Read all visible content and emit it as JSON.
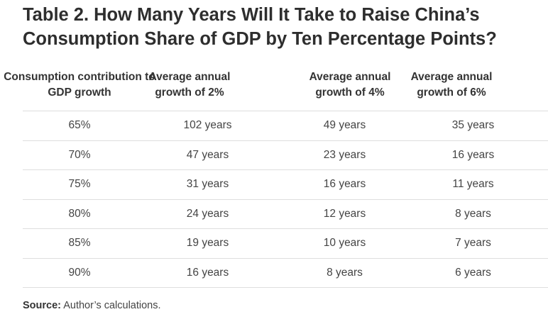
{
  "title": "Table 2. How Many Years Will It Take to Raise China’s Consumption Share of GDP by Ten Percentage Points?",
  "table": {
    "headers": [
      "Consumption contribution to GDP growth",
      "Average annual growth of 2%",
      "Average annual growth of 4%",
      "Average annual growth of 6%"
    ],
    "rows": [
      [
        "65%",
        "102 years",
        "49 years",
        "35 years"
      ],
      [
        "70%",
        "47 years",
        "23 years",
        "16 years"
      ],
      [
        "75%",
        "31 years",
        "16 years",
        "11 years"
      ],
      [
        "80%",
        "24 years",
        "12 years",
        "8 years"
      ],
      [
        "85%",
        "19 years",
        "10 years",
        "7 years"
      ],
      [
        "90%",
        "16 years",
        "8 years",
        "6 years"
      ]
    ]
  },
  "source": {
    "label": "Source:",
    "text": " Author’s calculations."
  }
}
